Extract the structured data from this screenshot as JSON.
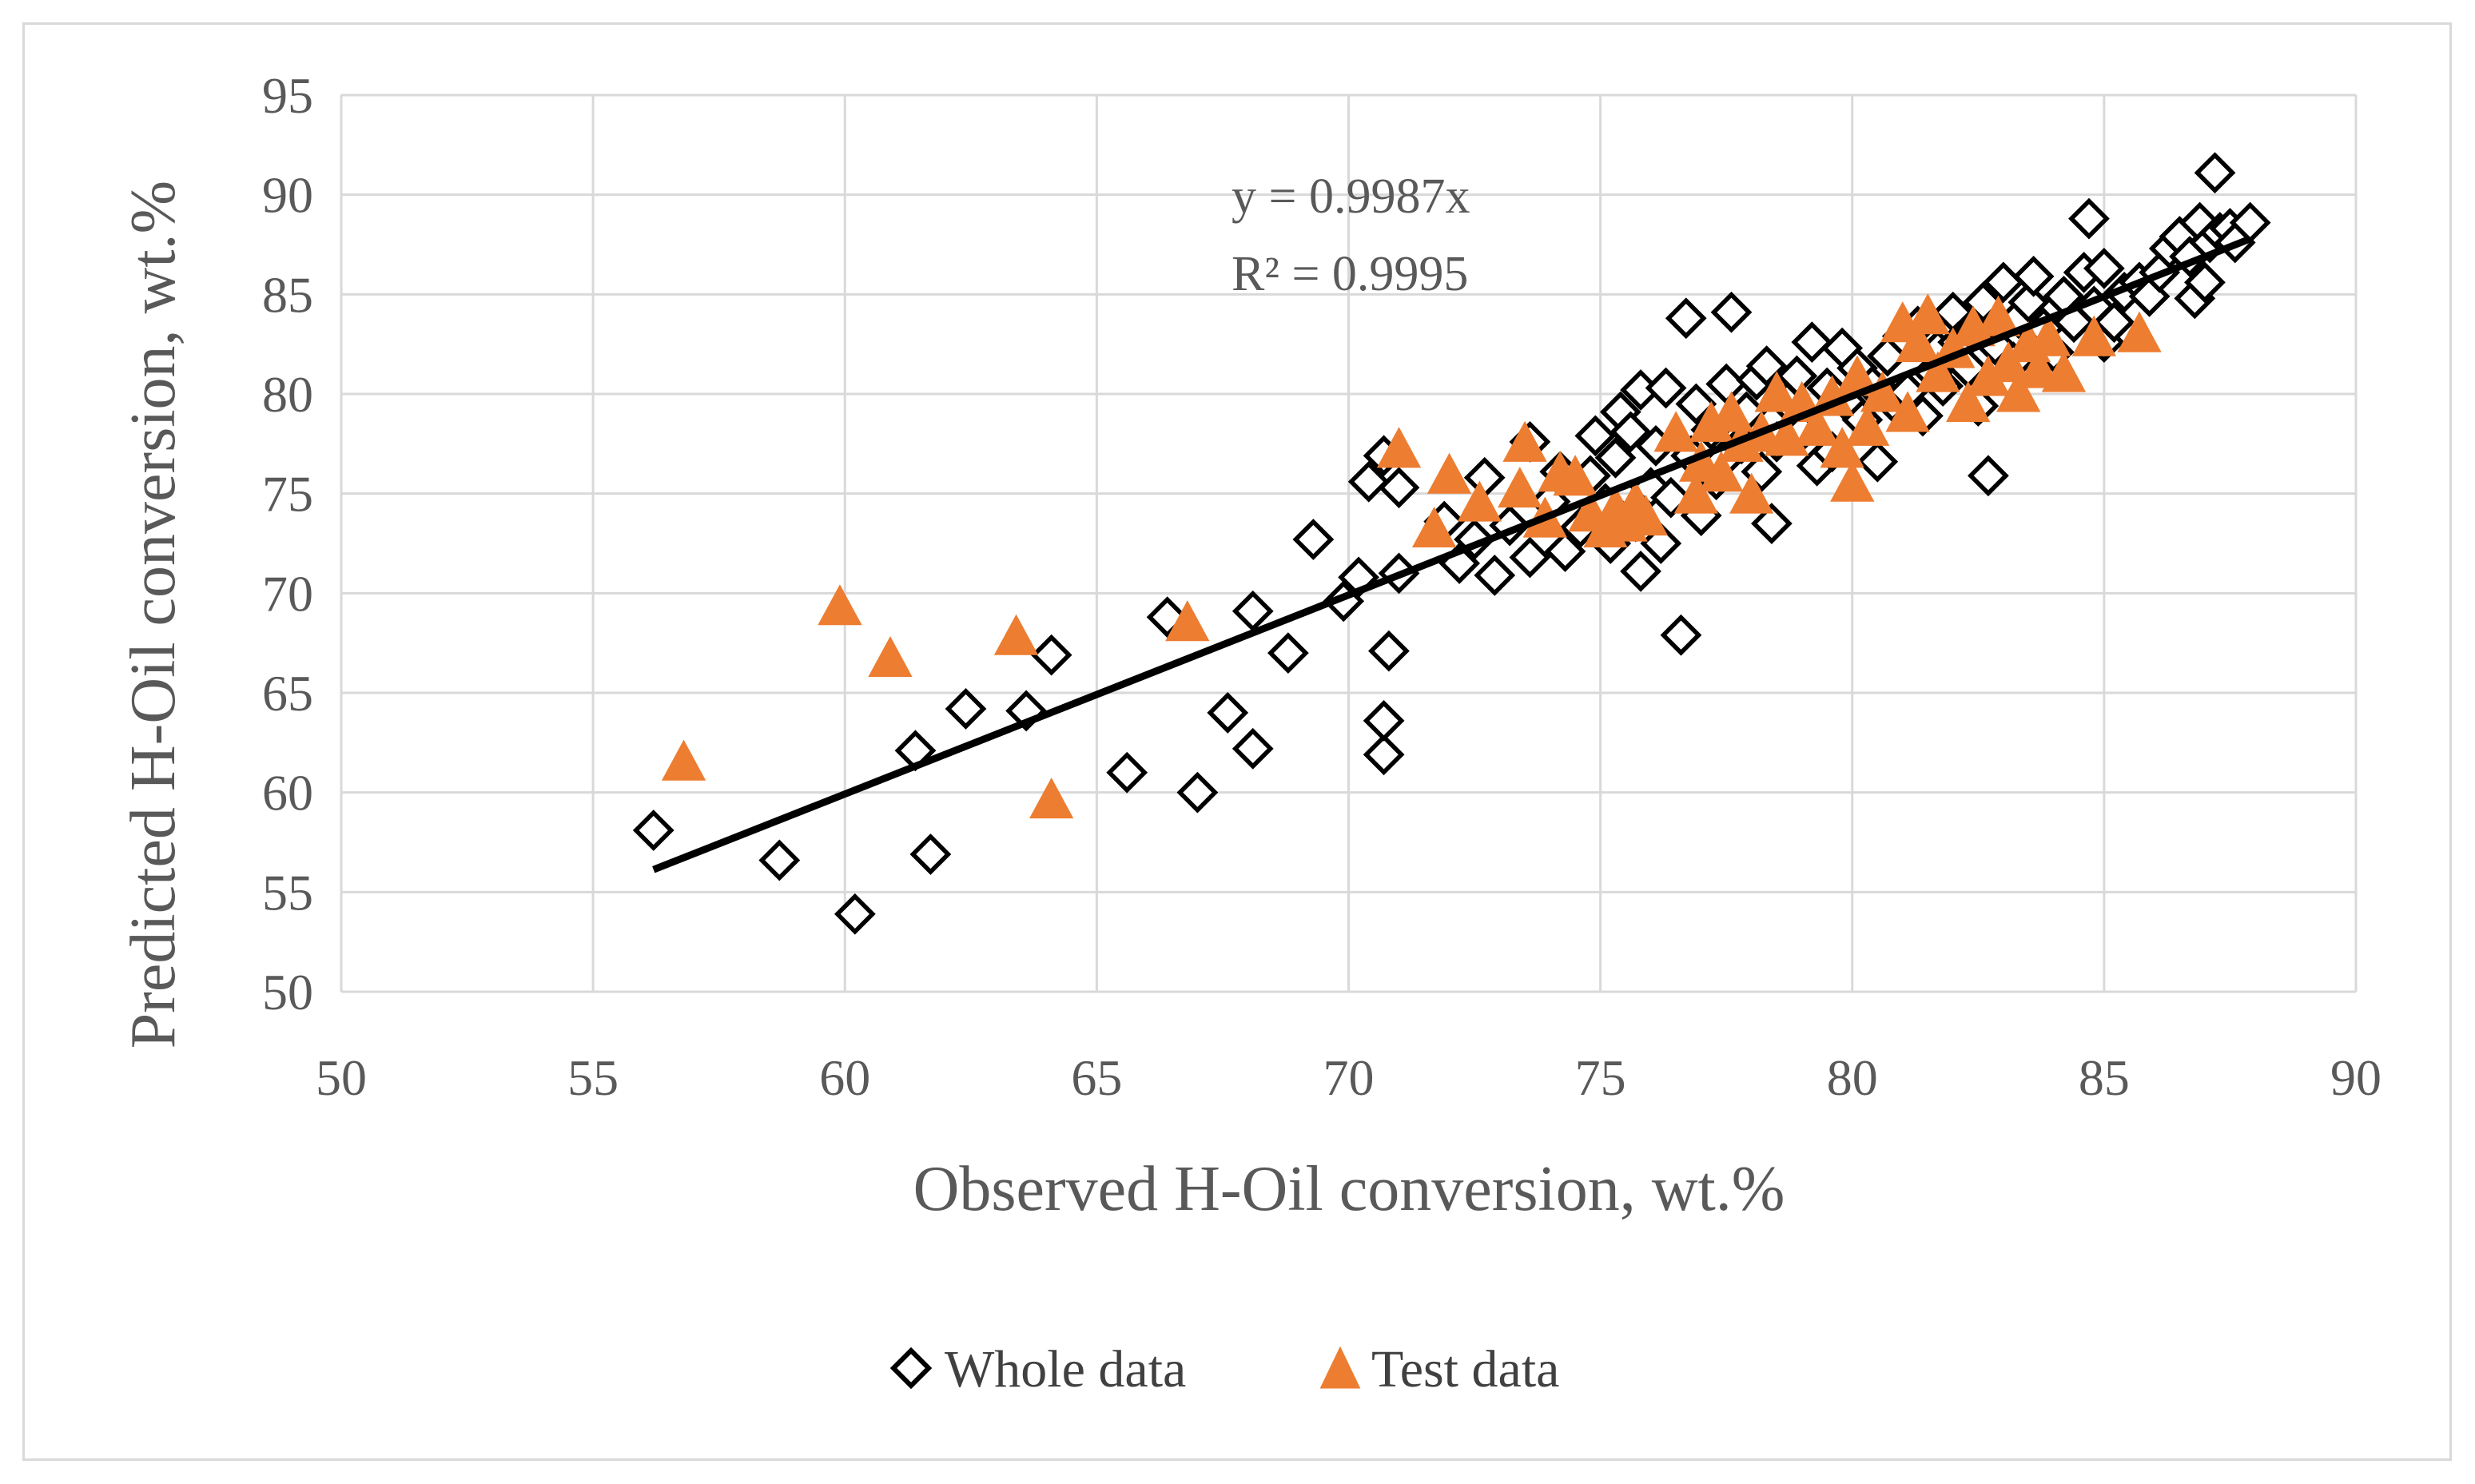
{
  "chart_data": {
    "type": "scatter",
    "title": "",
    "xlabel": "Observed H-Oil conversion, wt.%",
    "ylabel": "Predicted H-Oil conversion, wt.%",
    "xlim": [
      50,
      90
    ],
    "ylim": [
      50,
      95
    ],
    "x_ticks": [
      "50",
      "55",
      "60",
      "65",
      "70",
      "75",
      "80",
      "85",
      "90"
    ],
    "y_ticks": [
      "50",
      "55",
      "60",
      "65",
      "70",
      "75",
      "80",
      "85",
      "90",
      "95"
    ],
    "grid": true,
    "legend_position": "bottom",
    "trendline": {
      "equation": "y = 0.9987x",
      "r_squared": "R² = 0.9995",
      "slope": 0.9987,
      "x_range": [
        56.2,
        87.9
      ],
      "color": "#000000"
    },
    "series": [
      {
        "name": "Whole data",
        "marker": "diamond",
        "color": "#000000",
        "points": [
          [
            56.2,
            58.1
          ],
          [
            58.7,
            56.6
          ],
          [
            60.2,
            53.9
          ],
          [
            61.4,
            62.1
          ],
          [
            61.7,
            56.9
          ],
          [
            62.4,
            64.2
          ],
          [
            63.6,
            64.1
          ],
          [
            64.1,
            66.9
          ],
          [
            65.6,
            61.0
          ],
          [
            66.4,
            68.8
          ],
          [
            67.0,
            60.0
          ],
          [
            67.6,
            64.0
          ],
          [
            68.1,
            62.2
          ],
          [
            68.1,
            69.1
          ],
          [
            68.8,
            67.0
          ],
          [
            69.3,
            72.7
          ],
          [
            69.9,
            69.6
          ],
          [
            70.2,
            70.8
          ],
          [
            70.4,
            75.6
          ],
          [
            70.7,
            61.9
          ],
          [
            70.7,
            63.6
          ],
          [
            70.8,
            67.1
          ],
          [
            70.7,
            76.9
          ],
          [
            71.0,
            71.0
          ],
          [
            71.0,
            75.3
          ],
          [
            71.9,
            73.6
          ],
          [
            72.2,
            71.5
          ],
          [
            72.5,
            72.7
          ],
          [
            72.7,
            75.8
          ],
          [
            72.9,
            70.9
          ],
          [
            73.2,
            73.4
          ],
          [
            73.6,
            71.8
          ],
          [
            73.6,
            77.6
          ],
          [
            74.0,
            74.6
          ],
          [
            74.2,
            76.1
          ],
          [
            74.3,
            72.1
          ],
          [
            74.6,
            73.3
          ],
          [
            74.8,
            75.9
          ],
          [
            74.9,
            77.9
          ],
          [
            75.1,
            74.5
          ],
          [
            75.2,
            72.5
          ],
          [
            75.3,
            76.8
          ],
          [
            75.4,
            79.1
          ],
          [
            75.6,
            78.1
          ],
          [
            75.7,
            73.6
          ],
          [
            75.8,
            71.1
          ],
          [
            75.8,
            80.2
          ],
          [
            76.0,
            75.3
          ],
          [
            76.1,
            77.4
          ],
          [
            76.2,
            72.5
          ],
          [
            76.3,
            80.3
          ],
          [
            76.4,
            74.8
          ],
          [
            76.6,
            67.9
          ],
          [
            76.7,
            83.8
          ],
          [
            76.8,
            76.9
          ],
          [
            76.9,
            79.5
          ],
          [
            77.0,
            73.9
          ],
          [
            77.2,
            78.2
          ],
          [
            77.3,
            75.7
          ],
          [
            77.4,
            76.6
          ],
          [
            77.5,
            80.5
          ],
          [
            77.6,
            84.1
          ],
          [
            77.8,
            77.5
          ],
          [
            77.9,
            79.1
          ],
          [
            78.1,
            80.7
          ],
          [
            78.2,
            76.1
          ],
          [
            78.3,
            81.4
          ],
          [
            78.4,
            73.5
          ],
          [
            78.5,
            77.6
          ],
          [
            78.7,
            79.6
          ],
          [
            78.9,
            80.9
          ],
          [
            79.0,
            78.1
          ],
          [
            79.2,
            82.6
          ],
          [
            79.3,
            76.4
          ],
          [
            79.5,
            80.3
          ],
          [
            79.6,
            77.1
          ],
          [
            79.8,
            82.3
          ],
          [
            80.0,
            79.3
          ],
          [
            80.1,
            81.3
          ],
          [
            80.2,
            78.7
          ],
          [
            80.4,
            80.4
          ],
          [
            80.5,
            76.6
          ],
          [
            80.7,
            81.9
          ],
          [
            80.8,
            79.6
          ],
          [
            81.0,
            82.9
          ],
          [
            81.1,
            80.1
          ],
          [
            81.3,
            83.4
          ],
          [
            81.4,
            78.9
          ],
          [
            81.6,
            81.1
          ],
          [
            81.7,
            82.2
          ],
          [
            81.8,
            80.4
          ],
          [
            82.0,
            84.1
          ],
          [
            82.1,
            82.6
          ],
          [
            82.3,
            81.3
          ],
          [
            82.4,
            83.1
          ],
          [
            82.5,
            79.4
          ],
          [
            82.6,
            84.6
          ],
          [
            82.7,
            75.9
          ],
          [
            82.9,
            82.3
          ],
          [
            83.0,
            85.6
          ],
          [
            83.2,
            81.6
          ],
          [
            83.3,
            83.8
          ],
          [
            83.5,
            84.6
          ],
          [
            83.6,
            85.9
          ],
          [
            83.8,
            83.3
          ],
          [
            84.0,
            82.1
          ],
          [
            84.2,
            84.9
          ],
          [
            84.4,
            83.6
          ],
          [
            84.6,
            86.1
          ],
          [
            84.7,
            88.8
          ],
          [
            84.8,
            84.4
          ],
          [
            85.0,
            82.6
          ],
          [
            85.0,
            86.3
          ],
          [
            85.2,
            83.6
          ],
          [
            85.4,
            85.1
          ],
          [
            85.7,
            85.6
          ],
          [
            85.9,
            84.9
          ],
          [
            86.1,
            86.1
          ],
          [
            86.3,
            87.3
          ],
          [
            86.5,
            87.9
          ],
          [
            86.7,
            86.9
          ],
          [
            86.8,
            84.8
          ],
          [
            86.9,
            88.6
          ],
          [
            87.0,
            85.6
          ],
          [
            87.1,
            87.6
          ],
          [
            87.2,
            91.1
          ],
          [
            87.3,
            88.1
          ],
          [
            87.5,
            88.3
          ],
          [
            87.6,
            87.6
          ],
          [
            87.9,
            88.6
          ]
        ]
      },
      {
        "name": "Test data",
        "marker": "triangle",
        "color": "#ed7d31",
        "points": [
          [
            56.8,
            61.6
          ],
          [
            59.9,
            69.4
          ],
          [
            60.9,
            66.8
          ],
          [
            63.4,
            67.9
          ],
          [
            64.1,
            59.7
          ],
          [
            66.8,
            68.6
          ],
          [
            71.0,
            77.3
          ],
          [
            71.7,
            73.3
          ],
          [
            72.0,
            76.0
          ],
          [
            72.6,
            74.6
          ],
          [
            73.4,
            75.3
          ],
          [
            73.5,
            77.6
          ],
          [
            73.9,
            73.8
          ],
          [
            74.2,
            76.1
          ],
          [
            74.5,
            75.9
          ],
          [
            74.8,
            74.1
          ],
          [
            75.1,
            73.3
          ],
          [
            75.3,
            74.3
          ],
          [
            75.5,
            73.6
          ],
          [
            75.7,
            74.6
          ],
          [
            75.9,
            73.9
          ],
          [
            76.5,
            78.1
          ],
          [
            76.9,
            75.0
          ],
          [
            77.0,
            76.6
          ],
          [
            77.2,
            78.6
          ],
          [
            77.4,
            76.1
          ],
          [
            77.6,
            79.1
          ],
          [
            77.8,
            77.6
          ],
          [
            78.0,
            75.0
          ],
          [
            78.2,
            78.1
          ],
          [
            78.5,
            80.1
          ],
          [
            78.7,
            77.9
          ],
          [
            79.0,
            79.6
          ],
          [
            79.3,
            78.4
          ],
          [
            79.6,
            79.9
          ],
          [
            79.8,
            77.3
          ],
          [
            80.0,
            75.6
          ],
          [
            80.1,
            80.9
          ],
          [
            80.3,
            78.4
          ],
          [
            80.6,
            80.1
          ],
          [
            81.0,
            83.6
          ],
          [
            81.1,
            79.1
          ],
          [
            81.3,
            82.6
          ],
          [
            81.5,
            84.0
          ],
          [
            81.7,
            81.1
          ],
          [
            82.0,
            82.3
          ],
          [
            82.3,
            79.6
          ],
          [
            82.4,
            83.4
          ],
          [
            82.7,
            80.9
          ],
          [
            82.9,
            83.9
          ],
          [
            83.1,
            81.6
          ],
          [
            83.3,
            80.1
          ],
          [
            83.5,
            82.6
          ],
          [
            83.7,
            81.3
          ],
          [
            83.9,
            82.9
          ],
          [
            84.2,
            81.1
          ],
          [
            84.8,
            82.9
          ],
          [
            85.7,
            83.1
          ]
        ]
      }
    ]
  }
}
